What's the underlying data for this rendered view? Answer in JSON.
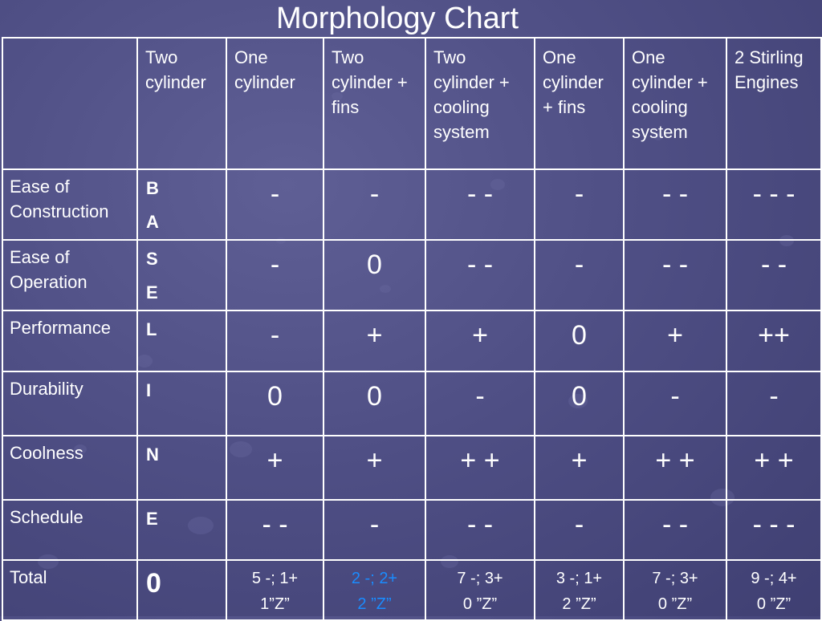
{
  "title": "Morphology Chart",
  "base_letters": [
    "B",
    "A",
    "S",
    "E",
    "L",
    "I",
    "N",
    "E"
  ],
  "columns": [
    "Two cylinder",
    "One cylinder",
    "Two cylinder + fins",
    "Two cylinder + cooling system",
    "One cylinder + fins",
    "One cylinder + cooling system",
    "2 Stirling Engines"
  ],
  "rows": [
    {
      "label": "Ease of Construction",
      "values": [
        "-",
        "-",
        "- -",
        "-",
        "- -",
        "- - -"
      ]
    },
    {
      "label": "Ease of Operation",
      "values": [
        "-",
        "0",
        "- -",
        "-",
        "- -",
        "- -"
      ]
    },
    {
      "label": "Performance",
      "values": [
        "-",
        "+",
        "+",
        "0",
        "+",
        "++"
      ]
    },
    {
      "label": "Durability",
      "values": [
        "0",
        "0",
        "-",
        "0",
        "-",
        "-"
      ]
    },
    {
      "label": "Coolness",
      "values": [
        "+",
        "+",
        "+ +",
        "+",
        "+ +",
        "+ +"
      ]
    },
    {
      "label": "Schedule",
      "values": [
        "- -",
        "-",
        "- -",
        "-",
        "- -",
        "- - -"
      ]
    }
  ],
  "total": {
    "label": "Total",
    "base_value": "0",
    "values": [
      {
        "line1": "5 -;  1+",
        "line2": "1”Z”"
      },
      {
        "line1": "2 -;  2+",
        "line2": "2 ”Z”"
      },
      {
        "line1": "7 -;  3+",
        "line2": "0 ”Z”"
      },
      {
        "line1": "3 -;  1+",
        "line2": "2 ”Z”"
      },
      {
        "line1": "7 -;  3+",
        "line2": "0 ”Z”"
      },
      {
        "line1": "9 -;  4+",
        "line2": "0 ”Z”"
      }
    ],
    "highlight_color": "#1a8cff"
  },
  "colors": {
    "background": "#4f4f85",
    "grid": "#ffffff",
    "text": "#ffffff"
  }
}
